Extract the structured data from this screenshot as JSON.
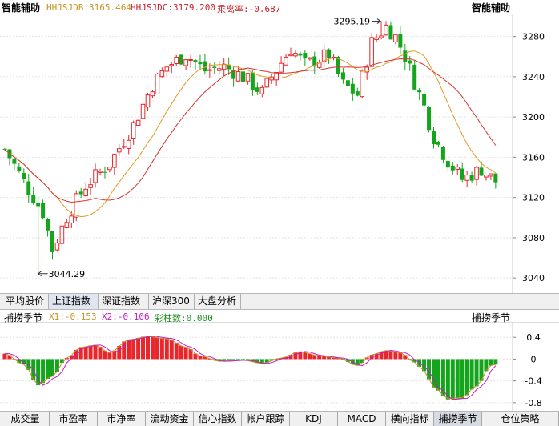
{
  "header": {
    "title_left": "智能辅助",
    "title_right": "智能辅助",
    "line1_label": "HHJSJDB:",
    "line1_value": "3165.464",
    "line2_label": "HHJSJDC:",
    "line2_value": "3179.200",
    "deviation_label": "乘离率:",
    "deviation_value": "-0.687"
  },
  "colors": {
    "up": "#e8262b",
    "down": "#15a51c",
    "ma_fast": "#e29a26",
    "ma_slow": "#d8352c",
    "line1": "#c89320",
    "line2": "#c8202a",
    "deviation": "#c8202a",
    "x1": "#c89320",
    "x2": "#c020c0",
    "bars": "#209020"
  },
  "main_chart": {
    "high_marker": "3295.19",
    "low_marker": "3044.29",
    "y_ticks": [
      "3280",
      "3240",
      "3200",
      "3160",
      "3120",
      "3080",
      "3040"
    ],
    "y_range": [
      3025,
      3302
    ]
  },
  "tabs": [
    "平均股价",
    "上证指数",
    "深证指数",
    "沪深300",
    "大盘分析"
  ],
  "active_tab": 1,
  "sub_panel": {
    "title_left": "捕捞季节",
    "title_right": "捕捞季节",
    "x1_label": "X1:",
    "x1_value": "-0.153",
    "x2_label": "X2:",
    "x2_value": "-0.106",
    "bar_label": "彩柱数:",
    "bar_value": "0.000",
    "y_ticks": [
      "0.4",
      "0",
      "-0.4",
      "-0.8"
    ],
    "y_range": [
      -0.92,
      0.55
    ]
  },
  "bottom_tabs": [
    "成交量",
    "市盈率",
    "市净率",
    "流动资金",
    "信心指数",
    "帐户跟踪",
    "KDJ",
    "MACD",
    "横向指标",
    "捕捞季节",
    "仓位策略"
  ],
  "active_bottom_tab": 9
}
